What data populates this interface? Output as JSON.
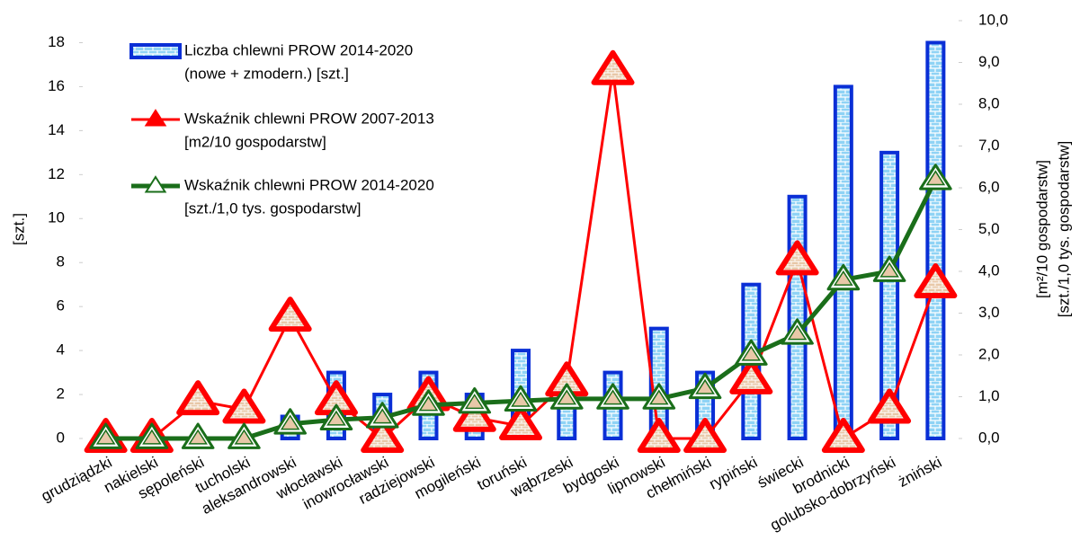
{
  "chart_data": {
    "type": "bar-line",
    "categories": [
      "grudziądzki",
      "nakielski",
      "sępoleński",
      "tucholski",
      "aleksandrowski",
      "włocławski",
      "inowrocławski",
      "radziejowski",
      "mogileński",
      "toruński",
      "wąbrzeski",
      "bydgoski",
      "lipnowski",
      "chełmiński",
      "rypiński",
      "świecki",
      "brodnicki",
      "golubsko-dobrzyński",
      "żniński"
    ],
    "series": [
      {
        "name": [
          "Liczba chlewni PROW 2014-2020",
          "(nowe + zmodern.) [szt.]"
        ],
        "type": "bar",
        "color": "#0a2fd6",
        "values": [
          0,
          0,
          0,
          0,
          1,
          3,
          2,
          3,
          2,
          4,
          2,
          3,
          5,
          3,
          7,
          11,
          16,
          13,
          18
        ]
      },
      {
        "name": [
          "Wskaźnik chlewni PROW 2007-2013",
          "[m2/10 gospodarstw]"
        ],
        "type": "line",
        "axis": "y2",
        "color": "#ff0000",
        "values": [
          0,
          0,
          0.9,
          0.7,
          2.9,
          0.9,
          0,
          1.0,
          0.5,
          0.3,
          1.35,
          8.8,
          0,
          0,
          1.4,
          4.25,
          0,
          0.7,
          3.7
        ]
      },
      {
        "name": [
          "Wskaźnik chlewni PROW 2014-2020",
          "[szt./1,0 tys. gospodarstw]"
        ],
        "type": "line",
        "axis": "y2",
        "color": "#1a6e1a",
        "values": [
          0,
          0,
          0,
          0,
          0.35,
          0.45,
          0.5,
          0.8,
          0.85,
          0.9,
          0.95,
          0.95,
          0.95,
          1.2,
          2.0,
          2.5,
          3.8,
          4.0,
          6.2
        ]
      }
    ],
    "ylabel": "[szt.]",
    "y2label": [
      "[m²/10 gospodarstw]",
      "[szt./1,0 tys. gospodarstw]"
    ],
    "ylim": [
      0,
      19
    ],
    "yticks": [
      0,
      2,
      4,
      6,
      8,
      10,
      12,
      14,
      16,
      18
    ],
    "y2lim": [
      0,
      10
    ],
    "y2ticks": [
      {
        "value": 0,
        "label": "0,0"
      },
      {
        "value": 1,
        "label": "1,0"
      },
      {
        "value": 2,
        "label": "2,0"
      },
      {
        "value": 3,
        "label": "3,0"
      },
      {
        "value": 4,
        "label": "4,0"
      },
      {
        "value": 5,
        "label": "5,0"
      },
      {
        "value": 6,
        "label": "6,0"
      },
      {
        "value": 7,
        "label": "7,0"
      },
      {
        "value": 8,
        "label": "8,0"
      },
      {
        "value": 9,
        "label": "9,0"
      },
      {
        "value": 10,
        "label": "10,0"
      }
    ],
    "grid": false
  }
}
